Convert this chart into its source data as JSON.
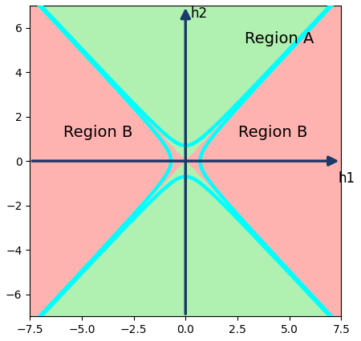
{
  "xlim": [
    -7.5,
    7.5
  ],
  "ylim": [
    -7.0,
    7.0
  ],
  "xticks": [
    -7.5,
    -5.0,
    -2.5,
    0.0,
    2.5,
    5.0,
    7.5
  ],
  "yticks": [
    -6,
    -4,
    -2,
    0,
    2,
    4,
    6
  ],
  "region_a_color": "#b0f0b0",
  "region_b_color": "#ffb3b0",
  "curve_color": "cyan",
  "axis_color": "#1a3a6b",
  "curve_linewidth": 3.2,
  "axis_linewidth": 2.5,
  "label_h1": "h1",
  "label_h2": "h2",
  "label_region_a": "Region A",
  "label_region_b_left": "Region B",
  "label_region_b_right": "Region B",
  "hyperbola_c": 0.7,
  "figsize": [
    4.5,
    4.26
  ],
  "dpi": 100
}
